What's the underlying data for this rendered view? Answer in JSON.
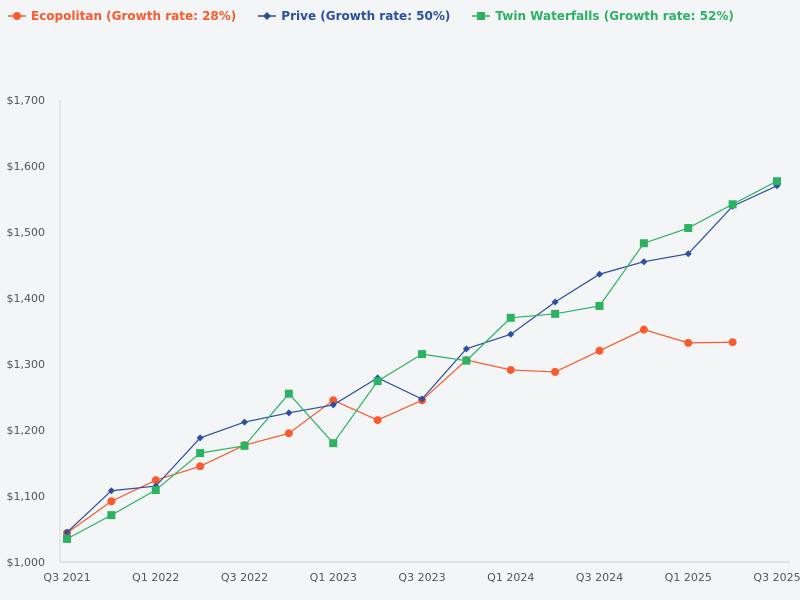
{
  "chart_data": {
    "type": "line",
    "title": "",
    "xlabel": "",
    "ylabel": "",
    "x": [
      "Q3 2021",
      "Q4 2021",
      "Q1 2022",
      "Q2 2022",
      "Q3 2022",
      "Q4 2022",
      "Q1 2023",
      "Q2 2023",
      "Q3 2023",
      "Q4 2023",
      "Q1 2024",
      "Q2 2024",
      "Q3 2024",
      "Q4 2024",
      "Q1 2025",
      "Q2 2025",
      "Q3 2025"
    ],
    "x_tick_labels": [
      "Q3 2021",
      "Q1 2022",
      "Q3 2022",
      "Q1 2023",
      "Q3 2023",
      "Q1 2024",
      "Q3 2024",
      "Q1 2025",
      "Q3 2025"
    ],
    "ylim": [
      1000,
      1700
    ],
    "y_ticks": [
      1000,
      1100,
      1200,
      1300,
      1400,
      1500,
      1600,
      1700
    ],
    "y_tick_labels": [
      "$1,000",
      "$1,100",
      "$1,200",
      "$1,300",
      "$1,400",
      "$1,500",
      "$1,600",
      "$1,700"
    ],
    "grid": false,
    "legend_position": "top-left",
    "series": [
      {
        "name": "Ecopolitan (Growth rate: 28%)",
        "color": "#fa5a2c",
        "marker": "circle",
        "values": [
          1044,
          1092,
          1124,
          1145,
          1177,
          1195,
          1245,
          1215,
          1245,
          1306,
          1291,
          1288,
          1320,
          1352,
          1332,
          1333,
          null
        ]
      },
      {
        "name": "Prive (Growth rate: 50%)",
        "color": "#2b4fa3",
        "marker": "diamond",
        "values": [
          1045,
          1108,
          1115,
          1188,
          1212,
          1226,
          1238,
          1279,
          1247,
          1323,
          1345,
          1394,
          1436,
          1455,
          1467,
          1539,
          1570
        ]
      },
      {
        "name": "Twin Waterfalls (Growth rate: 52%)",
        "color": "#2cb262",
        "marker": "square",
        "values": [
          1035,
          1071,
          1109,
          1165,
          1176,
          1255,
          1180,
          1274,
          1315,
          1305,
          1370,
          1376,
          1388,
          1483,
          1506,
          1542,
          1577
        ]
      }
    ]
  }
}
